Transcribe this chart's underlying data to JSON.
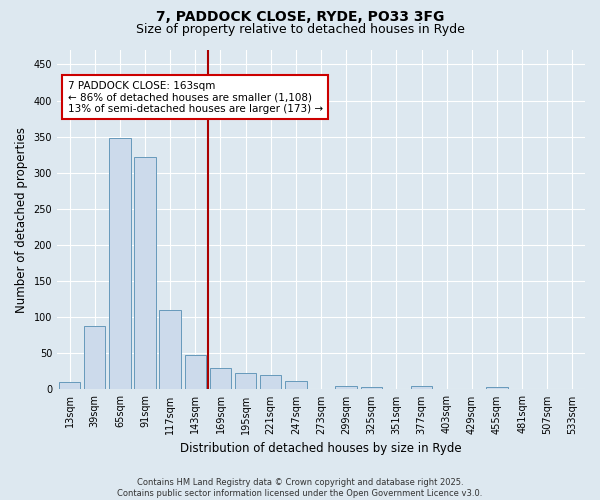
{
  "title_line1": "7, PADDOCK CLOSE, RYDE, PO33 3FG",
  "title_line2": "Size of property relative to detached houses in Ryde",
  "xlabel": "Distribution of detached houses by size in Ryde",
  "ylabel": "Number of detached properties",
  "categories": [
    "13sqm",
    "39sqm",
    "65sqm",
    "91sqm",
    "117sqm",
    "143sqm",
    "169sqm",
    "195sqm",
    "221sqm",
    "247sqm",
    "273sqm",
    "299sqm",
    "325sqm",
    "351sqm",
    "377sqm",
    "403sqm",
    "429sqm",
    "455sqm",
    "481sqm",
    "507sqm",
    "533sqm"
  ],
  "values": [
    10,
    88,
    348,
    322,
    110,
    48,
    30,
    23,
    20,
    12,
    0,
    5,
    3,
    0,
    5,
    0,
    0,
    3,
    0,
    0,
    0
  ],
  "bar_color": "#ccdaeb",
  "bar_edge_color": "#6699bb",
  "vline_index": 6,
  "annotation_text": "7 PADDOCK CLOSE: 163sqm\n← 86% of detached houses are smaller (1,108)\n13% of semi-detached houses are larger (173) →",
  "annotation_box_color": "white",
  "annotation_box_edge_color": "#cc0000",
  "vline_color": "#aa0000",
  "ylim": [
    0,
    470
  ],
  "yticks": [
    0,
    50,
    100,
    150,
    200,
    250,
    300,
    350,
    400,
    450
  ],
  "background_color": "#dde8f0",
  "plot_bg_color": "#dde8f0",
  "footer_text": "Contains HM Land Registry data © Crown copyright and database right 2025.\nContains public sector information licensed under the Open Government Licence v3.0.",
  "title_fontsize": 10,
  "subtitle_fontsize": 9,
  "tick_fontsize": 7,
  "label_fontsize": 8.5,
  "annotation_fontsize": 7.5,
  "footer_fontsize": 6
}
